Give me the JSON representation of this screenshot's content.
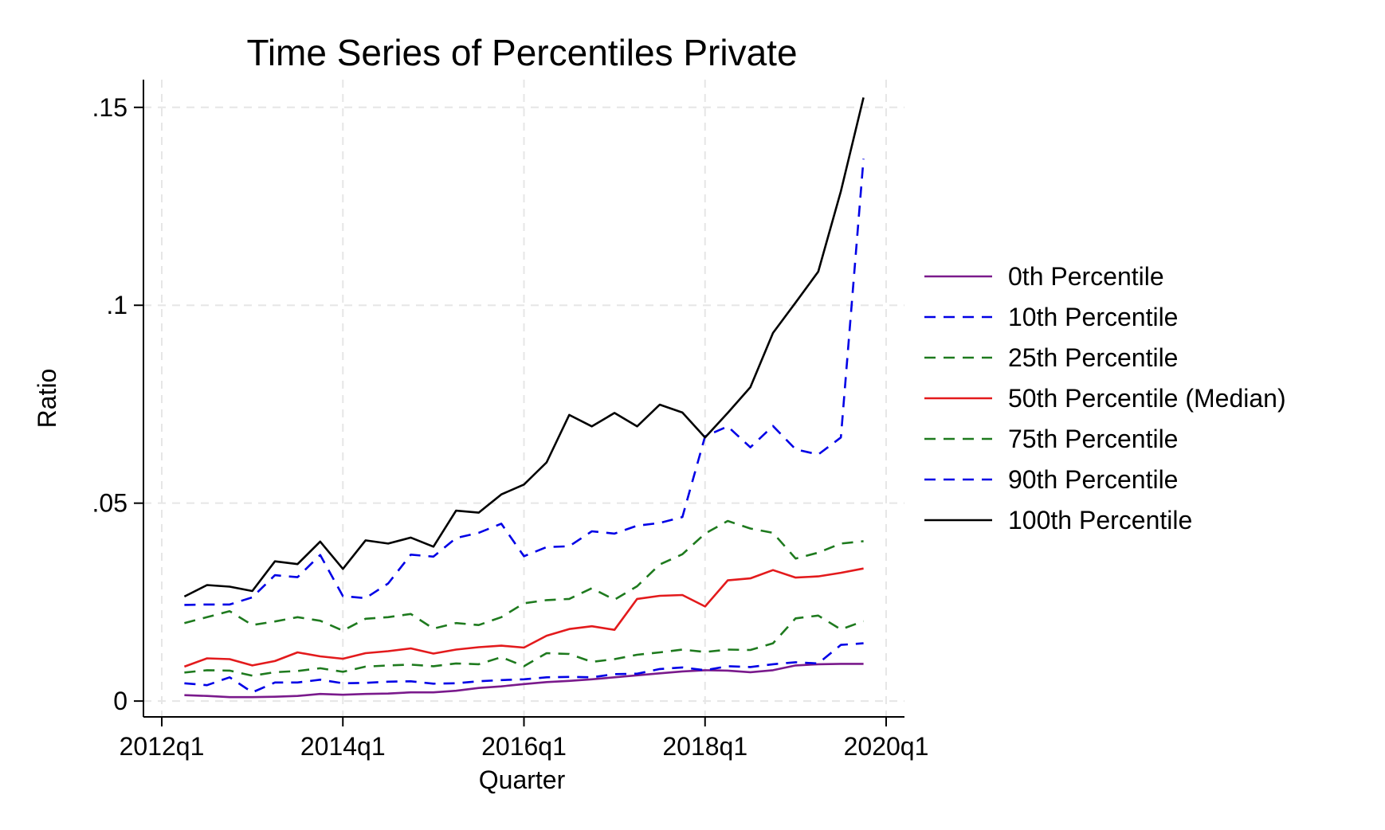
{
  "chart_data": {
    "type": "line",
    "title": "Time Series of Percentiles Private",
    "xlabel": "Quarter",
    "ylabel": "Ratio",
    "x_ticks": [
      "2012q1",
      "2014q1",
      "2016q1",
      "2018q1",
      "2020q1"
    ],
    "y_ticks": [
      "0",
      ".05",
      ".1",
      ".15"
    ],
    "xlim": [
      "2012q1",
      "2020q1"
    ],
    "ylim": [
      -0.004,
      0.157
    ],
    "grid": true,
    "legend_position": "right",
    "x": [
      "2012q2",
      "2012q3",
      "2012q4",
      "2013q1",
      "2013q2",
      "2013q3",
      "2013q4",
      "2014q1",
      "2014q2",
      "2014q3",
      "2014q4",
      "2015q1",
      "2015q2",
      "2015q3",
      "2015q4",
      "2016q1",
      "2016q2",
      "2016q3",
      "2016q4",
      "2017q1",
      "2017q2",
      "2017q3",
      "2017q4",
      "2018q1",
      "2018q2",
      "2018q3",
      "2018q4",
      "2019q1",
      "2019q2",
      "2019q3",
      "2019q4"
    ],
    "series": [
      {
        "name": "0th Percentile",
        "color": "#7a1a8c",
        "dash": "solid",
        "values": [
          0.0015,
          0.0013,
          0.001,
          0.001,
          0.0011,
          0.0013,
          0.0018,
          0.0016,
          0.0018,
          0.0019,
          0.0022,
          0.0022,
          0.0026,
          0.0033,
          0.0037,
          0.0043,
          0.0048,
          0.0051,
          0.0055,
          0.006,
          0.0065,
          0.007,
          0.0075,
          0.0078,
          0.0077,
          0.0073,
          0.0078,
          0.009,
          0.0093,
          0.0094,
          0.0094
        ]
      },
      {
        "name": "10th Percentile",
        "color": "#0000e6",
        "dash": "dashed",
        "values": [
          0.0045,
          0.004,
          0.006,
          0.0022,
          0.0047,
          0.0047,
          0.0054,
          0.0045,
          0.0046,
          0.0049,
          0.005,
          0.0044,
          0.0045,
          0.005,
          0.0053,
          0.0055,
          0.006,
          0.0061,
          0.006,
          0.0068,
          0.0069,
          0.0081,
          0.0085,
          0.0078,
          0.0088,
          0.0086,
          0.0093,
          0.0098,
          0.0095,
          0.0142,
          0.0146
        ]
      },
      {
        "name": "25th Percentile",
        "color": "#1e7a1e",
        "dash": "dashed",
        "values": [
          0.0072,
          0.0078,
          0.0077,
          0.0064,
          0.0073,
          0.0076,
          0.0083,
          0.0074,
          0.0087,
          0.009,
          0.0092,
          0.0088,
          0.0095,
          0.0093,
          0.0111,
          0.0088,
          0.0121,
          0.0119,
          0.0099,
          0.0106,
          0.0117,
          0.0123,
          0.013,
          0.0124,
          0.013,
          0.0129,
          0.0146,
          0.0209,
          0.0216,
          0.0181,
          0.0202
        ]
      },
      {
        "name": "50th Percentile (Median)",
        "color": "#e31a1c",
        "dash": "solid",
        "values": [
          0.0087,
          0.0108,
          0.0106,
          0.009,
          0.0101,
          0.0123,
          0.0113,
          0.0107,
          0.0121,
          0.0126,
          0.0133,
          0.012,
          0.013,
          0.0136,
          0.014,
          0.0135,
          0.0165,
          0.0182,
          0.0189,
          0.018,
          0.0258,
          0.0266,
          0.0268,
          0.0239,
          0.0305,
          0.031,
          0.0331,
          0.0312,
          0.0315,
          0.0324,
          0.0335
        ]
      },
      {
        "name": "75th Percentile",
        "color": "#1e7a1e",
        "dash": "dashed",
        "values": [
          0.0197,
          0.0212,
          0.0227,
          0.0192,
          0.0201,
          0.0212,
          0.0203,
          0.0178,
          0.0208,
          0.0212,
          0.022,
          0.0183,
          0.0197,
          0.0192,
          0.0212,
          0.0247,
          0.0255,
          0.0258,
          0.0285,
          0.0256,
          0.029,
          0.0345,
          0.0371,
          0.0423,
          0.0455,
          0.0436,
          0.0425,
          0.036,
          0.0375,
          0.0398,
          0.0404
        ]
      },
      {
        "name": "90th Percentile",
        "color": "#0000e6",
        "dash": "dashed",
        "values": [
          0.0243,
          0.0244,
          0.0244,
          0.0262,
          0.0318,
          0.0313,
          0.0369,
          0.0265,
          0.026,
          0.0297,
          0.037,
          0.0365,
          0.0412,
          0.0425,
          0.0448,
          0.0366,
          0.0389,
          0.0391,
          0.0429,
          0.0423,
          0.0443,
          0.045,
          0.0465,
          0.0669,
          0.0694,
          0.0641,
          0.0695,
          0.0636,
          0.0623,
          0.0666,
          0.137
        ]
      },
      {
        "name": "100th Percentile",
        "color": "#000000",
        "dash": "solid",
        "values": [
          0.0264,
          0.0293,
          0.0289,
          0.0278,
          0.0353,
          0.0346,
          0.0403,
          0.0334,
          0.0406,
          0.0398,
          0.0413,
          0.039,
          0.0481,
          0.0476,
          0.0522,
          0.0547,
          0.0603,
          0.0723,
          0.0694,
          0.0728,
          0.0694,
          0.0749,
          0.0729,
          0.0666,
          0.0728,
          0.0793,
          0.093,
          0.1007,
          0.1085,
          0.1288,
          0.1525
        ]
      }
    ]
  }
}
